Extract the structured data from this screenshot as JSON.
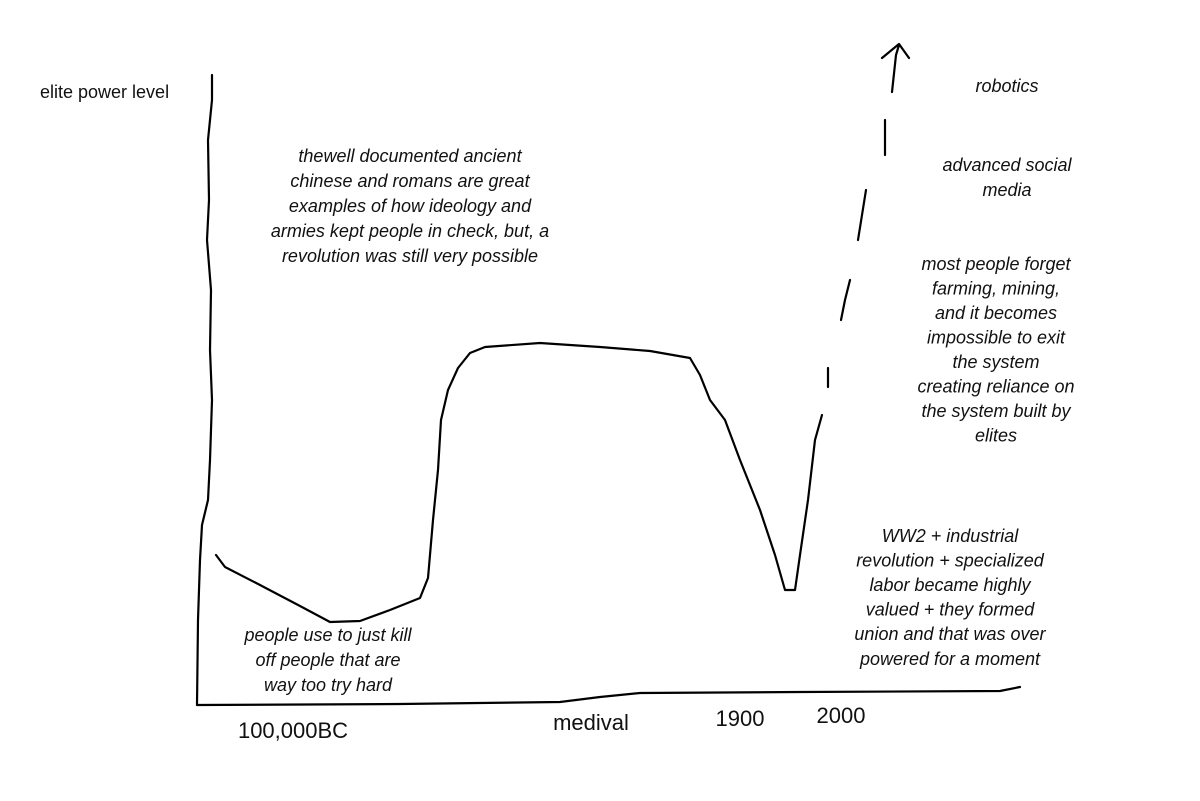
{
  "axis": {
    "y_label": "elite power level",
    "x_labels": [
      "100,000BC",
      "medival",
      "1900",
      "2000"
    ]
  },
  "annotations": [
    {
      "lines": [
        "thewell documented ancient",
        "chinese and romans are great",
        "examples of how ideology and",
        "armies kept people in check, but, a",
        "revolution was still very possible"
      ]
    },
    {
      "lines": [
        "people use to just kill",
        "off people that are",
        "way too try hard"
      ]
    },
    {
      "lines": [
        "robotics"
      ]
    },
    {
      "lines": [
        "advanced social",
        "media"
      ]
    },
    {
      "lines": [
        "most people forget",
        "farming, mining,",
        "and it becomes",
        "impossible to exit",
        "the system",
        "creating reliance on",
        "the system built by",
        "elites"
      ]
    },
    {
      "lines": [
        "WW2 + industrial",
        "revolution + specialized",
        "labor became highly",
        "valued + they formed",
        "union and that was over",
        "powered for a moment"
      ]
    }
  ]
}
